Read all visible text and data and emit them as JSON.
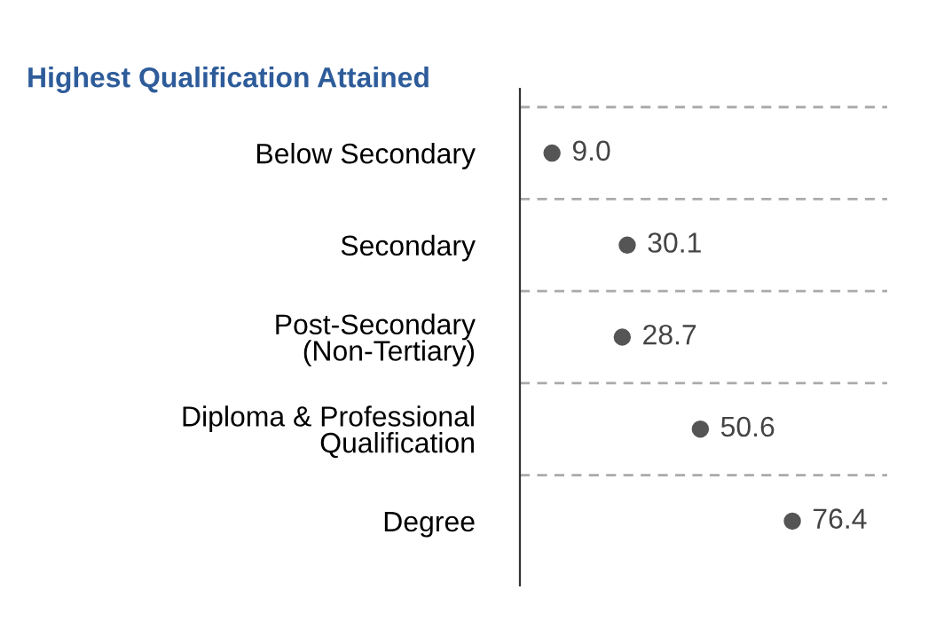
{
  "chart_data": {
    "type": "scatter",
    "title": "Highest Qualification Attained",
    "categories": [
      "Below Secondary",
      "Secondary",
      "Post-Secondary\n(Non-Tertiary)",
      "Diploma & Professional\nQualification",
      "Degree"
    ],
    "values": [
      9.0,
      30.1,
      28.7,
      50.6,
      76.4
    ],
    "value_labels": [
      "9.0",
      "30.1",
      "28.7",
      "50.6",
      "76.4"
    ],
    "color": "#555555",
    "marker": "circle",
    "orientation": "horizontal",
    "xlim": [
      0,
      103
    ],
    "tick_labels": "y",
    "grid": "y"
  }
}
